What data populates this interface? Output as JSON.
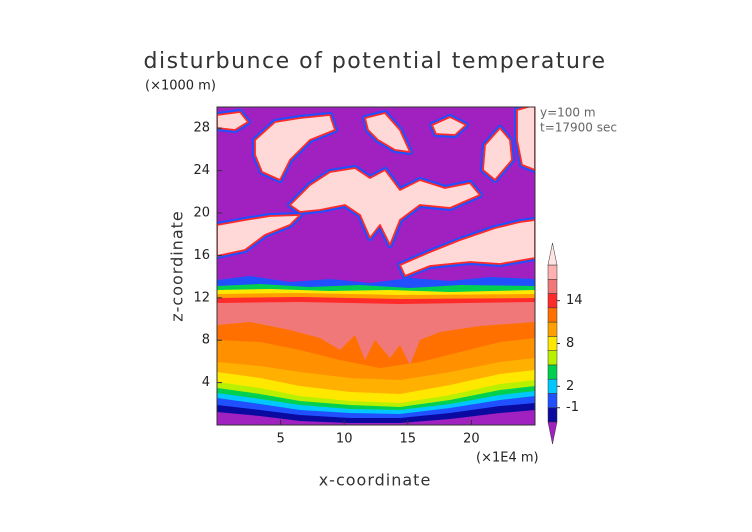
{
  "chart_data": {
    "type": "contour",
    "title": "disturbunce of potential temperature",
    "y_unit": "(×1000 m)",
    "x_unit": "(×1E4 m)",
    "xlabel": "x-coordinate",
    "ylabel": "z-coordinate",
    "annotations": [
      "y=100 m",
      "t=17900 sec"
    ],
    "xlim": [
      0,
      25
    ],
    "xticks": [
      5,
      10,
      15,
      20
    ],
    "ylim": [
      0,
      30
    ],
    "yticks": [
      4,
      8,
      12,
      16,
      20,
      24,
      28
    ],
    "colorbar": {
      "clim": [
        -3,
        19
      ],
      "ticks": [
        -1,
        2,
        8,
        14
      ],
      "under_color": "#a020c0",
      "over_color": "#ffe4e4",
      "colors": [
        "#0a0aa0",
        "#2050ff",
        "#00c8ff",
        "#00d050",
        "#b8f000",
        "#ffe800",
        "#ffa000",
        "#ff7000",
        "#ff2a2a",
        "#f07878",
        "#ffb0b0"
      ]
    }
  }
}
